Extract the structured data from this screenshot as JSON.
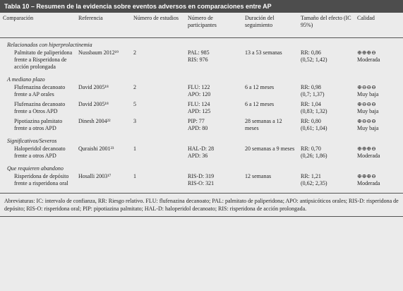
{
  "table": {
    "title": "Tabla 10 – Resumen de la evidencia sobre eventos adversos en comparaciones entre AP",
    "headers": [
      "Comparación",
      "Referencia",
      "Número de estudios",
      "Número de participantes",
      "Duración del seguimiento",
      "Tamaño del efecto (IC 95%)",
      "Calidad"
    ],
    "groups": [
      {
        "label": "Relacionados con hiperprolactinemia",
        "rows": [
          {
            "comparison": "Palmitato de paliperidona frente a Risperidona de acción prolongada",
            "reference": "Nussbaum 2012¹⁹",
            "studies": "2",
            "participants": [
              "PAL: 985",
              "RIS: 976"
            ],
            "duration": "13 a 53 semanas",
            "effect": [
              "RR: 0,86",
              "(0,52; 1,42)"
            ],
            "quality": [
              "⊕⊕⊕⊖",
              "Moderada"
            ]
          }
        ]
      },
      {
        "label": "A mediano plazo",
        "rows": [
          {
            "comparison": "Flufenazina decanoato frente a AP orales",
            "reference": "David 2005¹⁸",
            "studies": "2",
            "participants": [
              "FLU: 122",
              "APO: 120"
            ],
            "duration": "6 a 12 meses",
            "effect": [
              "RR: 0,98",
              "(0,7; 1,37)"
            ],
            "quality": [
              "⊕⊖⊖⊖",
              "Muy baja"
            ]
          },
          {
            "comparison": "Flufenazina decanoato frente a Otros APD",
            "reference": "David 2005¹⁸",
            "studies": "5",
            "participants": [
              "FLU: 124",
              "APD: 125"
            ],
            "duration": "6 a 12 meses",
            "effect": [
              "RR: 1,04",
              "(0,83; 1,32)"
            ],
            "quality": [
              "⊕⊖⊖⊖",
              "Muy baja"
            ]
          },
          {
            "comparison": "Pipotiazina palmitato frente a otros APD",
            "reference": "Dinesh 2004²²",
            "studies": "3",
            "participants": [
              "PIP: 77",
              "APD: 80"
            ],
            "duration": "28 semanas a 12 meses",
            "effect": [
              "RR: 0,80",
              "(0,61; 1,04)"
            ],
            "quality": [
              "⊕⊖⊖⊖",
              "Muy baja"
            ]
          }
        ]
      },
      {
        "label": "Significativos/Severos",
        "rows": [
          {
            "comparison": "Haloperidol decanoato frente a otros APD",
            "reference": "Quraishi 2001²³",
            "studies": "1",
            "participants": [
              "HAL-D: 28",
              "APD: 36"
            ],
            "duration": "20 semanas a 9 meses",
            "effect": [
              "RR: 0,70",
              "(0,26; 1,86)"
            ],
            "quality": [
              "⊕⊕⊕⊖",
              "Moderada"
            ]
          }
        ]
      },
      {
        "label": "Que requieren abandono",
        "rows": [
          {
            "comparison": "Risperidona de depósito frente a risperidona oral",
            "reference": "Hosalli 2003¹⁷",
            "studies": "1",
            "participants": [
              "RIS-D: 319",
              "RIS-O: 321"
            ],
            "duration": "12 semanas",
            "effect": [
              "RR: 1,21",
              "(0,62; 2,35)"
            ],
            "quality": [
              "⊕⊕⊕⊖",
              "Moderada"
            ]
          }
        ]
      }
    ],
    "footnote": "Abreviaturas: IC: intervalo de confianza, RR: Riesgo relativo. FLU: flufenazina decanoato; PAL: palmitato de paliperidona; APO: antipsicóticos orales; RIS-D: risperidona de depósito; RIS-O: risperidona oral; PIP: pipotiazina palmitato; HAL-D: haloperidol decanoato; RIS: risperidona de acción prolongada."
  }
}
